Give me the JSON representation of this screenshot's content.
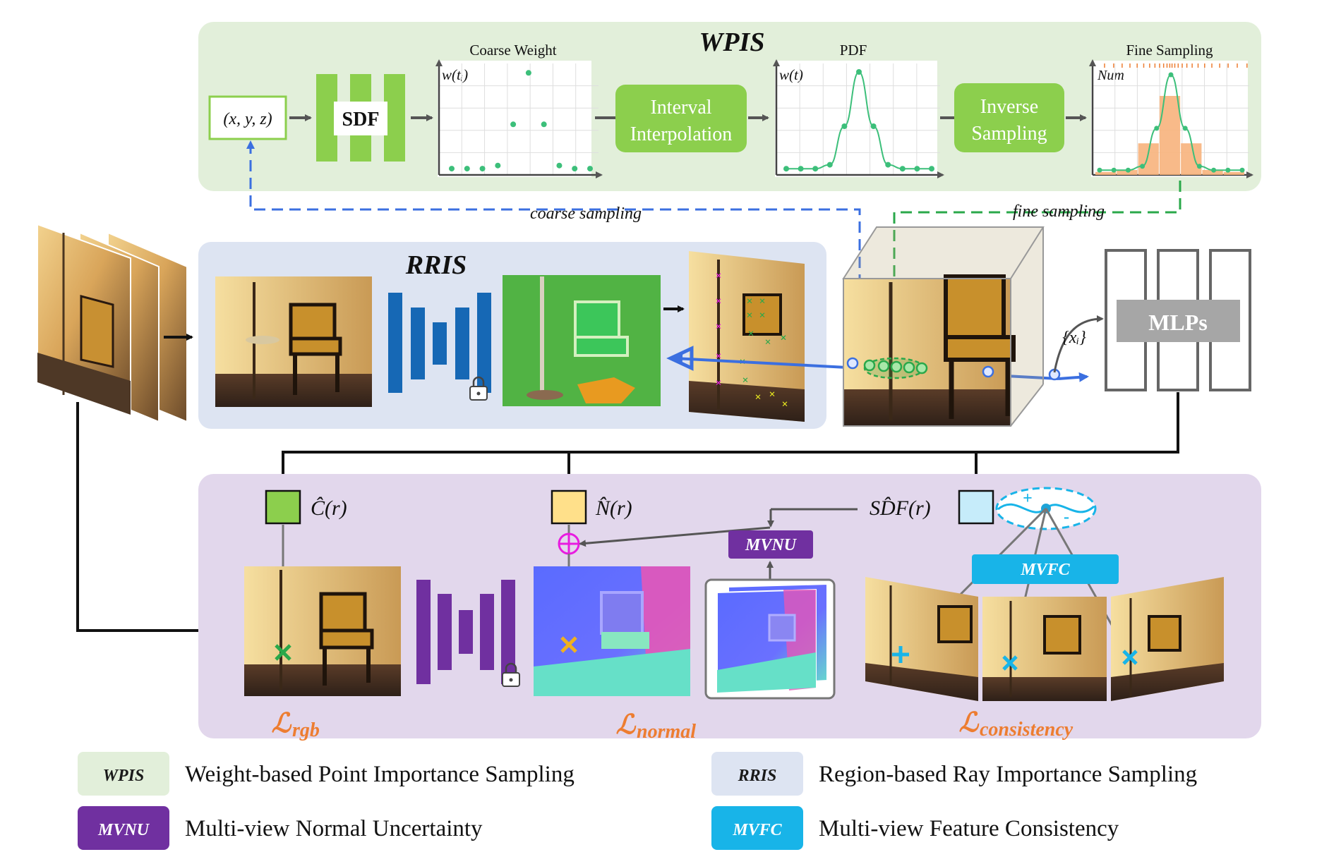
{
  "wpis": {
    "title": "WPIS",
    "input": "(x, y, z)",
    "sdf": "SDF",
    "coarse_plot_title": "Coarse Weight",
    "coarse_ylabel": "w(tᵢ)",
    "interval_line1": "Interval",
    "interval_line2": "Interpolation",
    "pdf_title": "PDF",
    "pdf_ylabel": "w(t)",
    "inverse_line1": "Inverse",
    "inverse_line2": "Sampling",
    "fine_title": "Fine Sampling",
    "fine_ylabel": "Num",
    "coarse_sampling": "coarse sampling",
    "fine_sampling": "fine sampling"
  },
  "rris": {
    "title": "RRIS"
  },
  "mlps": {
    "label": "MLPs",
    "points": "{xᵢ}"
  },
  "outputs": {
    "color": "Ĉ(r)",
    "normal": "N̂(r)",
    "sdf": "SD̂F(r)"
  },
  "modules": {
    "mvnu": "MVNU",
    "mvfc": "MVFC"
  },
  "losses": {
    "rgb_main": "ℒ",
    "rgb_sub": "rgb",
    "normal_main": "ℒ",
    "normal_sub": "normal",
    "cons_main": "ℒ",
    "cons_sub": "consistency"
  },
  "legend": [
    {
      "abbr": "WPIS",
      "text": "Weight-based Point Importance Sampling",
      "color": "#e2efda",
      "abbr_color": "#1a1a1a"
    },
    {
      "abbr": "RRIS",
      "text": "Region-based Ray Importance Sampling",
      "color": "#dde4f2",
      "abbr_color": "#1a1a1a"
    },
    {
      "abbr": "MVNU",
      "text": "Multi-view Normal Uncertainty",
      "color": "#7030a0",
      "abbr_color": "#ffffff"
    },
    {
      "abbr": "MVFC",
      "text": "Multi-view Feature Consistency",
      "color": "#18b4e8",
      "abbr_color": "#ffffff"
    }
  ],
  "colors": {
    "wpis_bg": "#e2efda",
    "rris_bg": "#dde4f2",
    "bottom_bg": "#e2d7ec",
    "green": "#8ccf4d",
    "blue_net": "#1668b5",
    "purple_net": "#7030a0",
    "cyan": "#18b4e8",
    "loss_orange": "#ed7d31",
    "ray_blue": "#3b6fe0"
  },
  "chart_data": [
    {
      "type": "scatter",
      "title": "Coarse Weight",
      "ylabel": "w(tᵢ)",
      "x": [
        1,
        2,
        3,
        4,
        5,
        6,
        7,
        8,
        9,
        10
      ],
      "values": [
        0.02,
        0.02,
        0.02,
        0.05,
        0.45,
        0.95,
        0.45,
        0.05,
        0.02,
        0.02
      ]
    },
    {
      "type": "line",
      "title": "PDF",
      "ylabel": "w(t)",
      "x": [
        1,
        2,
        3,
        4,
        5,
        6,
        7,
        8,
        9,
        10,
        11
      ],
      "values": [
        0.02,
        0.02,
        0.02,
        0.06,
        0.45,
        1.0,
        0.45,
        0.06,
        0.02,
        0.02,
        0.02
      ]
    },
    {
      "type": "bar",
      "title": "Fine Sampling",
      "ylabel": "Num",
      "categories": [
        "1",
        "2",
        "3",
        "4",
        "5",
        "6",
        "7"
      ],
      "values": [
        0.03,
        0.05,
        0.32,
        0.8,
        0.32,
        0.05,
        0.03
      ]
    }
  ]
}
